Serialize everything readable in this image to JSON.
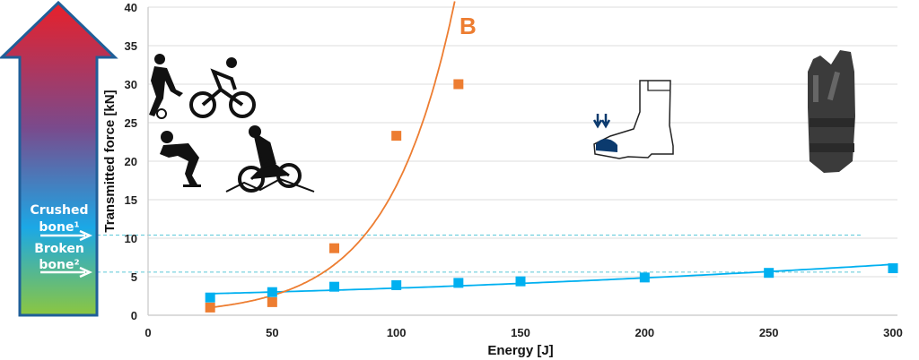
{
  "chart_data": {
    "type": "scatter",
    "xlabel": "Energy [J]",
    "ylabel": "Transmitted force [kN]",
    "xlim": [
      0,
      300
    ],
    "ylim": [
      0,
      40
    ],
    "xticks": [
      "0",
      "50",
      "100",
      "150",
      "200",
      "250",
      "300"
    ],
    "yticks": [
      "0",
      "5",
      "10",
      "15",
      "20",
      "25",
      "30",
      "35",
      "40"
    ],
    "grid": "horizontal",
    "annotation": "B",
    "threshold_lines": [
      {
        "label": "Crushed bone¹",
        "value": 10.4
      },
      {
        "label": "Broken bone²",
        "value": 5.6
      }
    ],
    "series": [
      {
        "color": "#00b0f0",
        "marker": "square",
        "x": [
          25,
          50,
          75,
          100,
          125,
          150,
          200,
          250,
          300
        ],
        "y": [
          2.3,
          3.0,
          3.7,
          3.9,
          4.2,
          4.4,
          4.9,
          5.5,
          6.1
        ],
        "trend": "polynomial"
      },
      {
        "color": "#ed7d31",
        "marker": "square",
        "x": [
          25,
          50,
          75,
          100,
          125
        ],
        "y": [
          1.0,
          1.7,
          8.7,
          23.3,
          30.0
        ],
        "trend": "exponential"
      }
    ]
  },
  "arrow": {
    "label_crushed": "Crushed",
    "label_crushed_2": "bone¹",
    "label_broken": "Broken",
    "label_broken_2": "bone²",
    "colors": [
      "#e8202a",
      "#7a4a8c",
      "#1ba8e6",
      "#8cc63f"
    ]
  },
  "icons": [
    "soccer-player-icon",
    "cyclist-icon",
    "inline-skater-icon",
    "motocross-rider-icon",
    "safety-boot-icon",
    "body-armor-vest-icon"
  ]
}
